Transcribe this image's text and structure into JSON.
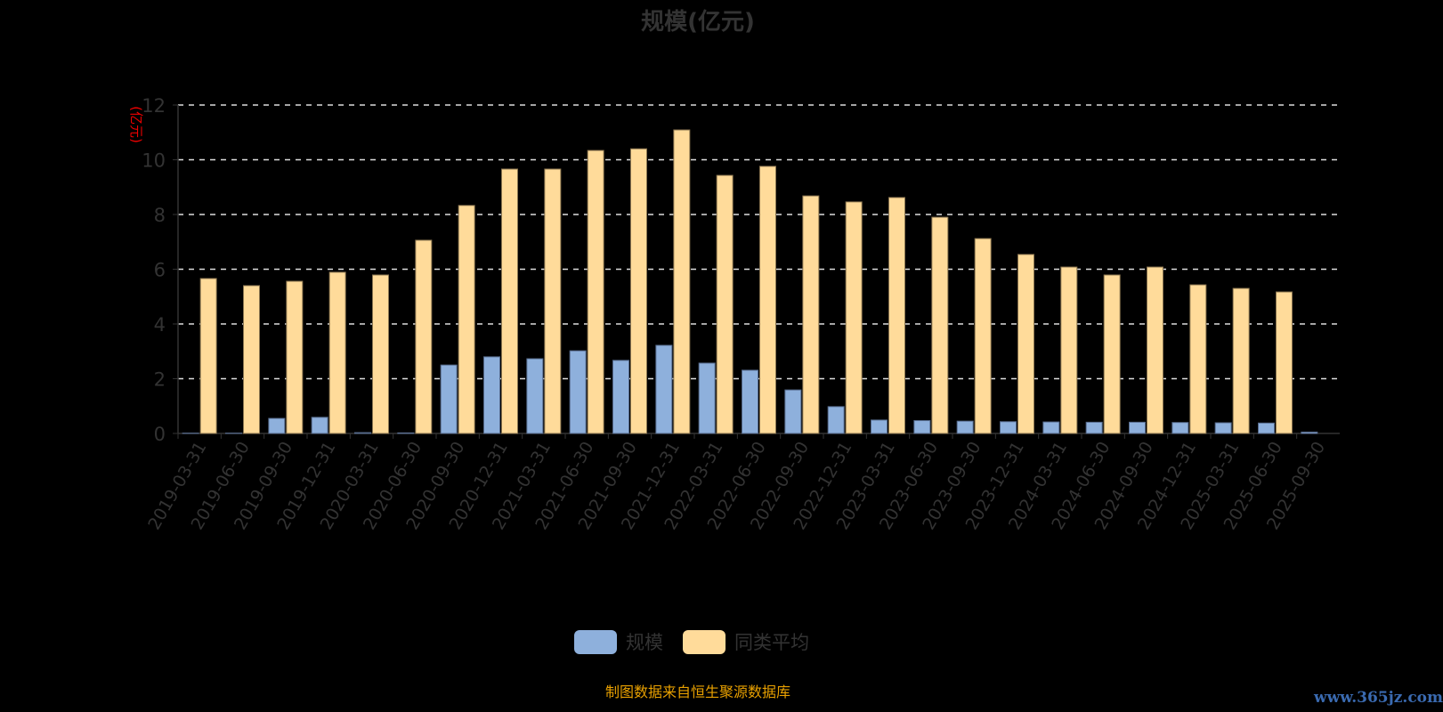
{
  "title": "规模(亿元)",
  "source": "制图数据来自恒生聚源数据库",
  "watermark": "www.365jz.com",
  "chart_data": {
    "type": "bar",
    "ylabel": "(亿元)",
    "ylim": [
      0,
      12
    ],
    "yticks": [
      0,
      2,
      4,
      6,
      8,
      10,
      12
    ],
    "grid": true,
    "legend_position": "bottom",
    "categories": [
      "2019-03-31",
      "2019-06-30",
      "2019-09-30",
      "2019-12-31",
      "2020-03-31",
      "2020-06-30",
      "2020-09-30",
      "2020-12-31",
      "2021-03-31",
      "2021-06-30",
      "2021-09-30",
      "2021-12-31",
      "2022-03-31",
      "2022-06-30",
      "2022-09-30",
      "2022-12-31",
      "2023-03-31",
      "2023-06-30",
      "2023-09-30",
      "2023-12-31",
      "2024-03-31",
      "2024-06-30",
      "2024-09-30",
      "2024-12-31",
      "2025-03-31",
      "2025-06-30",
      "2025-09-30"
    ],
    "series": [
      {
        "name": "规模",
        "color": "#8eb0dc",
        "values": [
          0.01,
          0.01,
          0.55,
          0.59,
          0.03,
          0.02,
          2.5,
          2.8,
          2.73,
          3.02,
          2.67,
          3.22,
          2.57,
          2.31,
          1.59,
          0.98,
          0.49,
          0.47,
          0.45,
          0.43,
          0.42,
          0.41,
          0.41,
          0.4,
          0.39,
          0.38,
          0.05
        ]
      },
      {
        "name": "同类平均",
        "color": "#ffdb9a",
        "values": [
          5.66,
          5.4,
          5.56,
          5.89,
          5.79,
          7.06,
          8.33,
          9.66,
          9.66,
          10.34,
          10.4,
          11.09,
          9.43,
          9.76,
          8.68,
          8.46,
          8.62,
          7.9,
          7.12,
          6.54,
          6.08,
          5.79,
          6.08,
          5.43,
          5.3,
          5.17,
          null
        ]
      }
    ]
  }
}
